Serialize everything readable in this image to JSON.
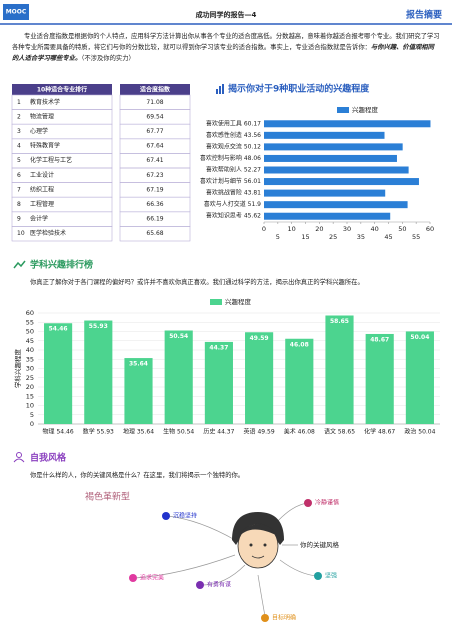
{
  "header": {
    "logo": "MOOC",
    "title": "成功同学的报告—4",
    "tag": "报告摘要"
  },
  "intro": {
    "text": "专业适合度指数是根据你的个人特点，应用科学方法计算出你从事各个专业的适合度高低。分数越高，意味着你越适合报考哪个专业。我们研究了学习各种专业所需要具备的特质，将它们与你的分数比较，就可以得到你学习该专业的适合指数。事实上，专业适合指数就是告诉你：",
    "emphasis": "与你兴趣、价值观相同的人适合学习哪些专业。",
    "note": "（不涉及你的实力）"
  },
  "table": {
    "columns": [
      "10种适合专业排行",
      "适合度指数"
    ],
    "rows": [
      [
        1,
        "教育技术学",
        71.08
      ],
      [
        2,
        "物流管理",
        69.54
      ],
      [
        3,
        "心理学",
        67.77
      ],
      [
        4,
        "特殊教育学",
        67.64
      ],
      [
        5,
        "化学工程与工艺",
        67.41
      ],
      [
        6,
        "工业设计",
        67.23
      ],
      [
        7,
        "纺织工程",
        67.19
      ],
      [
        8,
        "工程管理",
        66.36
      ],
      [
        9,
        "会计学",
        66.19
      ],
      [
        10,
        "医学检验技术",
        65.68
      ]
    ]
  },
  "chart_data": [
    {
      "type": "bar",
      "orientation": "horizontal",
      "title": "揭示你对于9种职业活动的兴趣程度",
      "categories": [
        "喜欢使用工具 60.17",
        "喜欢感性创造 43.56",
        "喜欢观点交流 50.12",
        "喜欢控制与影响 48.06",
        "喜欢帮助别人 52.27",
        "喜欢计划与细节 56.01",
        "喜欢挑战冒险 43.81",
        "喜欢与人打交道 51.9",
        "喜欢知识思考 45.62"
      ],
      "series": [
        {
          "name": "兴趣程度",
          "color": "#2b7fd6",
          "values": [
            60.17,
            43.56,
            50.12,
            48.06,
            52.27,
            56.01,
            43.81,
            51.9,
            45.62
          ]
        }
      ],
      "xlim": [
        0,
        60
      ],
      "xticks": [
        0,
        5,
        10,
        15,
        20,
        25,
        30,
        35,
        40,
        45,
        50,
        55,
        60
      ],
      "grid": false,
      "legend": "top"
    },
    {
      "type": "bar",
      "orientation": "vertical",
      "ylabel": "学科兴趣程度",
      "categories": [
        "物理 54.46",
        "数学 55.93",
        "地理 35.64",
        "生物 50.54",
        "历史 44.37",
        "英语 49.59",
        "美术 46.08",
        "语文 58.65",
        "化学 48.67",
        "政治 50.04"
      ],
      "series": [
        {
          "name": "兴趣程度",
          "color": "#4cd48f",
          "values": [
            54.46,
            55.93,
            35.64,
            50.54,
            44.37,
            49.59,
            46.08,
            58.65,
            48.67,
            50.04
          ]
        }
      ],
      "ylim": [
        0,
        60
      ],
      "yticks": [
        0,
        5,
        10,
        15,
        20,
        25,
        30,
        35,
        40,
        45,
        50,
        55,
        60
      ],
      "grid": true,
      "legend": "top",
      "data_labels": true
    }
  ],
  "sections": [
    {
      "title": "学科兴趣排行榜",
      "text": "你真正了解你对于各门课程的偏好吗？或许并不喜欢你真正喜欢。我们通过科学的方法，揭示出你真正的学科兴趣所在。"
    },
    {
      "title": "自我风格",
      "text": "你是什么样的人，你的关键风格是什么？在这里，我们将揭示一个独特的你。"
    }
  ],
  "mind_map": {
    "title": "褐色革新型",
    "center": "你的关键风格",
    "nodes": [
      "沉稳坚持",
      "冷静谨慎",
      "追求完美",
      "有勇有谋",
      "坚强",
      "目标明确"
    ]
  }
}
